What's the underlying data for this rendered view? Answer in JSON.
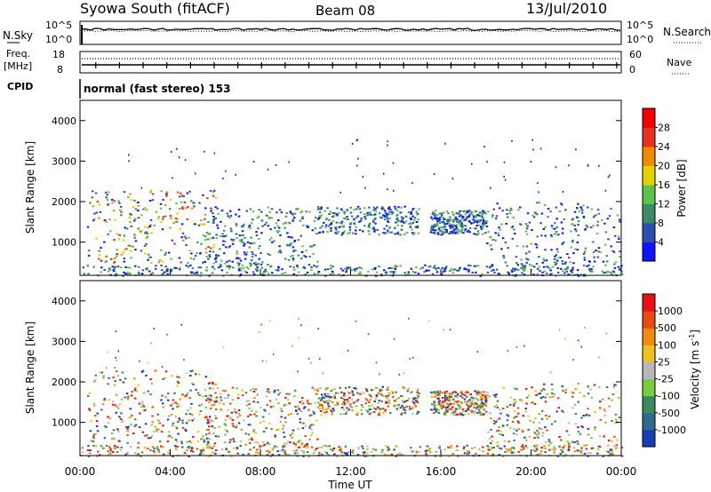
{
  "header": {
    "station": "Syowa South (fitACF)",
    "beam": "Beam 08",
    "date": "13/Jul/2010"
  },
  "noise_panel": {
    "left_label": "N.Sky",
    "right_label": "N.Search",
    "left_ticks": [
      "10^5",
      "10^0"
    ],
    "right_ticks": [
      "10^5",
      "10^0"
    ]
  },
  "freq_panel": {
    "left_label_line1": "Freq.",
    "left_label_line2": "[MHz]",
    "right_label": "Nave",
    "left_ticks": [
      "18",
      "8"
    ],
    "right_ticks": [
      "60",
      "0"
    ]
  },
  "cpid_panel": {
    "label": "CPID",
    "mode_text": "normal (fast stereo) 153"
  },
  "x_axis": {
    "label": "Time UT",
    "ticks": [
      "00:00",
      "04:00",
      "08:00",
      "12:00",
      "16:00",
      "20:00",
      "00:00"
    ]
  },
  "power_panel": {
    "ylabel": "Slant Range [km]",
    "yticks": [
      "1000",
      "2000",
      "3000",
      "4000"
    ],
    "colorbar_label": "Power [dB]",
    "colorbar_ticks": [
      "4",
      "8",
      "12",
      "16",
      "20",
      "24",
      "28"
    ],
    "colors": [
      "#1212ff",
      "#2a4fae",
      "#3a8a6a",
      "#5dc24a",
      "#e6d200",
      "#f08a00",
      "#e83020",
      "#ee0000"
    ]
  },
  "velocity_panel": {
    "ylabel": "Slant Range [km]",
    "yticks": [
      "1000",
      "2000",
      "3000",
      "4000"
    ],
    "colorbar_label": "Velocity [m s",
    "colorbar_sup": "-1",
    "colorbar_label_end": "]",
    "colorbar_ticks": [
      "1000",
      "500",
      "100",
      "25",
      "-25",
      "-100",
      "-500",
      "-1000"
    ],
    "colors": [
      "#1a3cb4",
      "#2e6a8e",
      "#3a8a5a",
      "#7acc40",
      "#b8b8b8",
      "#f0c020",
      "#f08a10",
      "#e84a10",
      "#e81010"
    ]
  },
  "chart_data": {
    "type": "heatmap",
    "x_range": [
      "00:00",
      "24:00"
    ],
    "y_range_km": [
      180,
      4500
    ],
    "scatter_regions": [
      {
        "t_start": 0.3,
        "t_end": 6.0,
        "r_start": 500,
        "r_end": 2300
      },
      {
        "t_start": 5.5,
        "t_end": 10.5,
        "r_start": 400,
        "r_end": 1900
      },
      {
        "t_start": 10.5,
        "t_end": 15.0,
        "r_start": 1200,
        "r_end": 1900
      },
      {
        "t_start": 15.5,
        "t_end": 18.0,
        "r_start": 1200,
        "r_end": 1800
      },
      {
        "t_start": 18.0,
        "t_end": 23.9,
        "r_start": 300,
        "r_end": 2000
      },
      {
        "t_start": 0.0,
        "t_end": 24.0,
        "r_start": 180,
        "r_end": 450
      }
    ]
  }
}
